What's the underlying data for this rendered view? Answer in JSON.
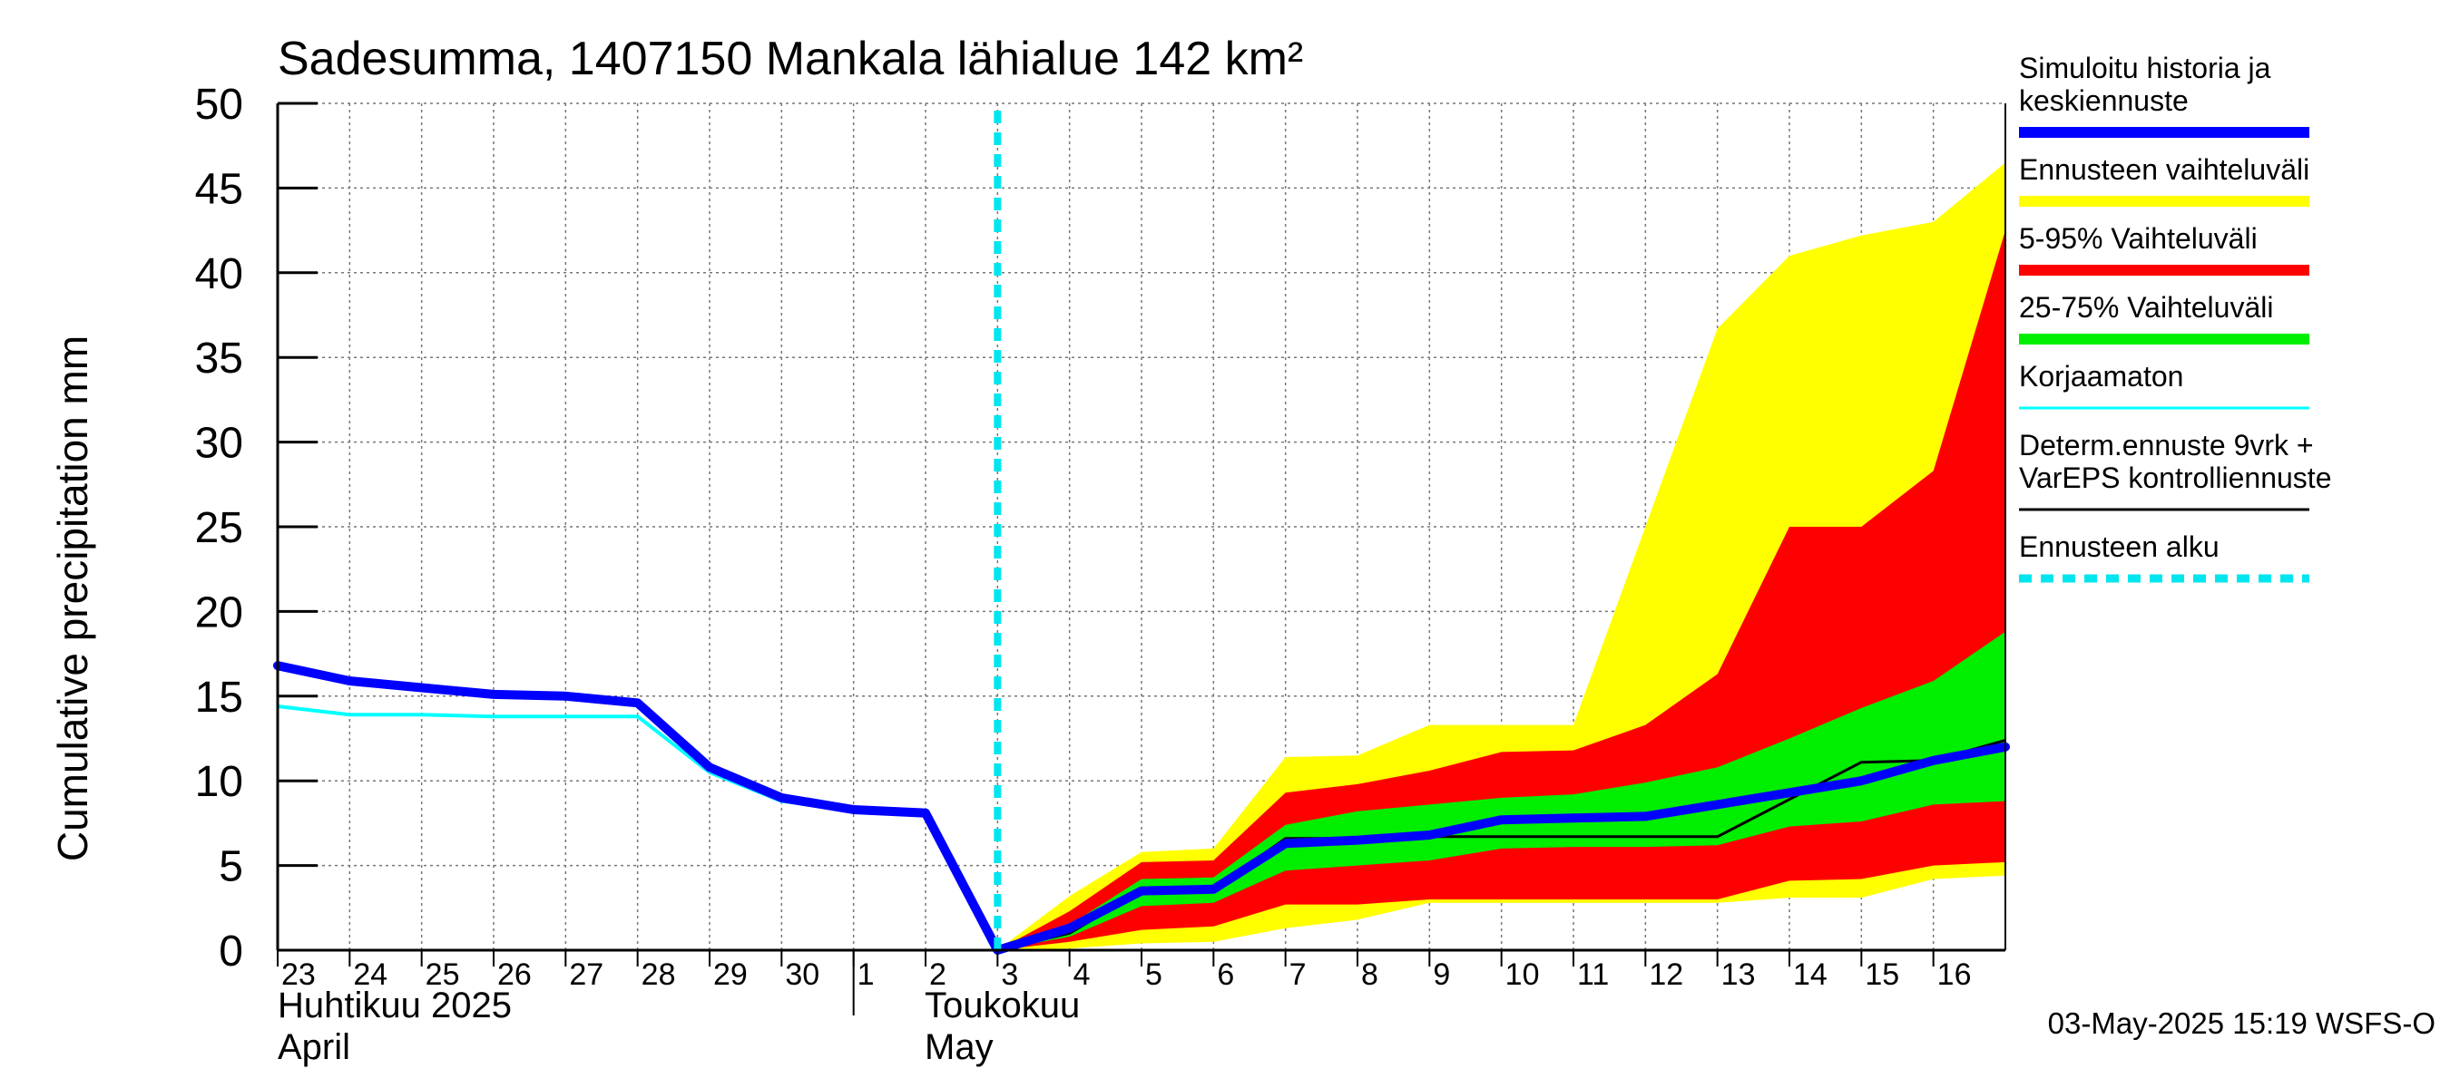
{
  "chart_data": {
    "type": "area",
    "title": "Sadesumma, 1407150 Mankala lähialue 142 km²",
    "ylabel": "Cumulative precipitation   mm",
    "ylim": [
      0,
      50
    ],
    "yticks": [
      0,
      5,
      10,
      15,
      20,
      25,
      30,
      35,
      40,
      45,
      50
    ],
    "xlim": [
      0,
      24
    ],
    "day_ticks": [
      {
        "label": "23",
        "x": 0
      },
      {
        "label": "24",
        "x": 1
      },
      {
        "label": "25",
        "x": 2
      },
      {
        "label": "26",
        "x": 3
      },
      {
        "label": "27",
        "x": 4
      },
      {
        "label": "28",
        "x": 5
      },
      {
        "label": "29",
        "x": 6
      },
      {
        "label": "30",
        "x": 7
      },
      {
        "label": "1",
        "x": 8
      },
      {
        "label": "2",
        "x": 9
      },
      {
        "label": "3",
        "x": 10
      },
      {
        "label": "4",
        "x": 11
      },
      {
        "label": "5",
        "x": 12
      },
      {
        "label": "6",
        "x": 13
      },
      {
        "label": "7",
        "x": 14
      },
      {
        "label": "8",
        "x": 15
      },
      {
        "label": "9",
        "x": 16
      },
      {
        "label": "10",
        "x": 17
      },
      {
        "label": "11",
        "x": 18
      },
      {
        "label": "12",
        "x": 19
      },
      {
        "label": "13",
        "x": 20
      },
      {
        "label": "14",
        "x": 21
      },
      {
        "label": "15",
        "x": 22
      },
      {
        "label": "16",
        "x": 23
      }
    ],
    "month_labels": {
      "april_fi": "Huhtikuu  2025",
      "april_en": "April",
      "may_fi": "Toukokuu",
      "may_en": "May"
    },
    "month_boundary_x": 8,
    "forecast_start_x": 10,
    "timestamp": "03-May-2025 15:19 WSFS-O",
    "legend": [
      {
        "label_lines": [
          "Simuloitu historia ja",
          "keskiennuste"
        ],
        "color": "#0000ff",
        "style": "thick"
      },
      {
        "label_lines": [
          "Ennusteen vaihteluväli"
        ],
        "color": "#ffff00",
        "style": "thick"
      },
      {
        "label_lines": [
          "5-95% Vaihteluväli"
        ],
        "color": "#ff0000",
        "style": "thick"
      },
      {
        "label_lines": [
          "25-75% Vaihteluväli"
        ],
        "color": "#00ee00",
        "style": "thick"
      },
      {
        "label_lines": [
          "Korjaamaton"
        ],
        "color": "#00ffff",
        "style": "thin"
      },
      {
        "label_lines": [
          "Determ.ennuste 9vrk +",
          "VarEPS kontrolliennuste"
        ],
        "color": "#000000",
        "style": "thin"
      },
      {
        "label_lines": [
          "Ennusteen alku"
        ],
        "color": "#00e5ee",
        "style": "dashed"
      }
    ],
    "colors": {
      "range": "#ffff00",
      "p5_95": "#ff0000",
      "p25_75": "#00ee00",
      "simulated": "#0000ff",
      "uncorrected": "#00ffff",
      "deterministic": "#000000",
      "forecast_start": "#00e5ee",
      "grid": "#777777"
    },
    "series": {
      "range_band": {
        "x": [
          10,
          11,
          12,
          13,
          14,
          15,
          16,
          17,
          18,
          19,
          20,
          21,
          22,
          23,
          24
        ],
        "upper": [
          0,
          3.2,
          5.8,
          6.0,
          11.4,
          11.5,
          13.3,
          13.3,
          13.3,
          25.0,
          36.7,
          41.0,
          42.2,
          43.0,
          46.5
        ],
        "lower": [
          0,
          0.1,
          0.4,
          0.5,
          1.3,
          1.8,
          2.8,
          2.8,
          2.8,
          2.8,
          2.8,
          3.1,
          3.1,
          4.2,
          4.4
        ]
      },
      "p5_95_band": {
        "x": [
          10,
          11,
          12,
          13,
          14,
          15,
          16,
          17,
          18,
          19,
          20,
          21,
          22,
          23,
          24
        ],
        "upper": [
          0,
          2.3,
          5.2,
          5.3,
          9.3,
          9.8,
          10.6,
          11.7,
          11.8,
          13.3,
          16.3,
          25.0,
          25.0,
          28.3,
          42.5
        ],
        "lower": [
          0,
          0.5,
          1.2,
          1.4,
          2.7,
          2.7,
          3.0,
          3.0,
          3.0,
          3.0,
          3.0,
          4.1,
          4.2,
          5.0,
          5.2
        ]
      },
      "p25_75_band": {
        "x": [
          10,
          11,
          12,
          13,
          14,
          15,
          16,
          17,
          18,
          19,
          20,
          21,
          22,
          23,
          24
        ],
        "upper": [
          0,
          1.5,
          4.2,
          4.3,
          7.4,
          8.2,
          8.6,
          9.0,
          9.2,
          9.9,
          10.8,
          12.5,
          14.3,
          15.9,
          18.8
        ],
        "lower": [
          0,
          0.8,
          2.6,
          2.8,
          4.7,
          5.0,
          5.3,
          6.0,
          6.1,
          6.1,
          6.2,
          7.3,
          7.6,
          8.6,
          8.8
        ]
      },
      "simulated": {
        "x": [
          0,
          1,
          2,
          3,
          4,
          5,
          6,
          7,
          8,
          9,
          10,
          11,
          12,
          13,
          14,
          15,
          16,
          17,
          18,
          19,
          20,
          21,
          22,
          23,
          24
        ],
        "y": [
          16.8,
          15.9,
          15.5,
          15.1,
          15.0,
          14.6,
          10.8,
          9.0,
          8.3,
          8.1,
          0,
          1.3,
          3.5,
          3.6,
          6.3,
          6.5,
          6.8,
          7.7,
          7.8,
          7.9,
          8.6,
          9.3,
          10.0,
          11.2,
          12.0
        ]
      },
      "uncorrected": {
        "x": [
          0,
          1,
          2,
          3,
          4,
          5,
          6,
          7,
          8,
          9
        ],
        "y": [
          14.4,
          13.9,
          13.9,
          13.8,
          13.8,
          13.8,
          10.5,
          8.8,
          8.3,
          8.1
        ]
      },
      "deterministic": {
        "x": [
          10,
          11,
          12,
          13,
          14,
          15,
          16,
          17,
          18,
          19,
          20,
          21,
          22,
          23,
          24
        ],
        "y": [
          0,
          1.0,
          3.5,
          3.6,
          6.6,
          6.6,
          6.7,
          6.7,
          6.7,
          6.7,
          6.7,
          8.9,
          11.1,
          11.2,
          12.4
        ]
      }
    }
  }
}
